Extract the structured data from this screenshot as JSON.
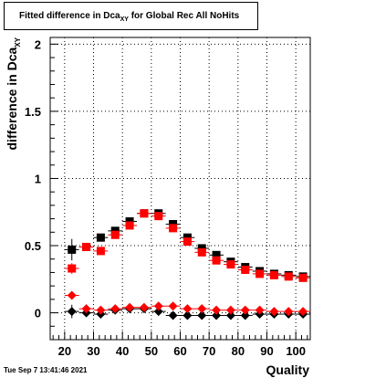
{
  "title": {
    "prefix": "Fitted difference in Dca",
    "subscript": "XY",
    "suffix": " for Global Rec All NoHits"
  },
  "footer": {
    "date": "Tue Sep  7 13:41:46 2021"
  },
  "colors": {
    "black_series": "#000000",
    "red_series": "#ff0000",
    "grid": "#000000"
  },
  "chart_data": {
    "type": "scatter",
    "title": "Fitted difference in Dca_XY for Global Rec All NoHits",
    "xlabel": "Quality",
    "ylabel": "difference in Dca_XY",
    "xlim": [
      15,
      105
    ],
    "ylim": [
      -0.2,
      2.05
    ],
    "x_ticks": [
      20,
      30,
      40,
      50,
      60,
      70,
      80,
      90,
      100
    ],
    "x_tick_labels": [
      "20",
      "30",
      "40",
      "50",
      "60",
      "70",
      "80",
      "90",
      "100"
    ],
    "y_ticks": [
      0,
      0.5,
      1,
      1.5,
      2
    ],
    "y_tick_labels": [
      "0",
      "0.5",
      "1",
      "1.5",
      "2"
    ],
    "grid": true,
    "x": [
      22.5,
      27.5,
      32.5,
      37.5,
      42.5,
      47.5,
      52.5,
      57.5,
      62.5,
      67.5,
      72.5,
      77.5,
      82.5,
      87.5,
      92.5,
      97.5,
      102.5
    ],
    "series": [
      {
        "color": "#000000",
        "marker": "square",
        "values": [
          0.47,
          0.49,
          0.56,
          0.61,
          0.68,
          0.74,
          0.74,
          0.66,
          0.56,
          0.48,
          0.43,
          0.38,
          0.34,
          0.31,
          0.29,
          0.28,
          0.27
        ],
        "errors": [
          0.08,
          0.03,
          0.02,
          0.02,
          0.01,
          0.01,
          0.01,
          0.01,
          0.01,
          0.01,
          0.01,
          0.01,
          0.01,
          0.01,
          0.01,
          0.01,
          0.01
        ]
      },
      {
        "color": "#ff0000",
        "marker": "square",
        "values": [
          0.33,
          0.49,
          0.46,
          0.58,
          0.65,
          0.74,
          0.72,
          0.63,
          0.53,
          0.45,
          0.39,
          0.36,
          0.32,
          0.29,
          0.28,
          0.27,
          0.26
        ],
        "errors": [
          0.04,
          0.02,
          0.02,
          0.02,
          0.01,
          0.01,
          0.01,
          0.01,
          0.01,
          0.01,
          0.01,
          0.01,
          0.01,
          0.01,
          0.01,
          0.01,
          0.01
        ]
      },
      {
        "color": "#000000",
        "marker": "diamond",
        "values": [
          0.01,
          0.0,
          -0.01,
          0.02,
          0.03,
          0.03,
          0.01,
          -0.02,
          -0.02,
          -0.02,
          -0.02,
          -0.02,
          -0.02,
          -0.01,
          -0.01,
          -0.01,
          -0.01
        ],
        "errors": [
          0.05,
          0.02,
          0.02,
          0.02,
          0.01,
          0.01,
          0.01,
          0.01,
          0.01,
          0.01,
          0.01,
          0.01,
          0.01,
          0.01,
          0.01,
          0.01,
          0.01
        ]
      },
      {
        "color": "#ff0000",
        "marker": "diamond",
        "values": [
          0.13,
          0.03,
          0.02,
          0.03,
          0.04,
          0.04,
          0.05,
          0.05,
          0.03,
          0.03,
          0.02,
          0.02,
          0.02,
          0.02,
          0.01,
          0.01,
          0.01
        ],
        "errors": [
          0.03,
          0.01,
          0.01,
          0.01,
          0.01,
          0.01,
          0.01,
          0.01,
          0.01,
          0.01,
          0.01,
          0.01,
          0.01,
          0.01,
          0.01,
          0.01,
          0.01
        ]
      }
    ]
  }
}
